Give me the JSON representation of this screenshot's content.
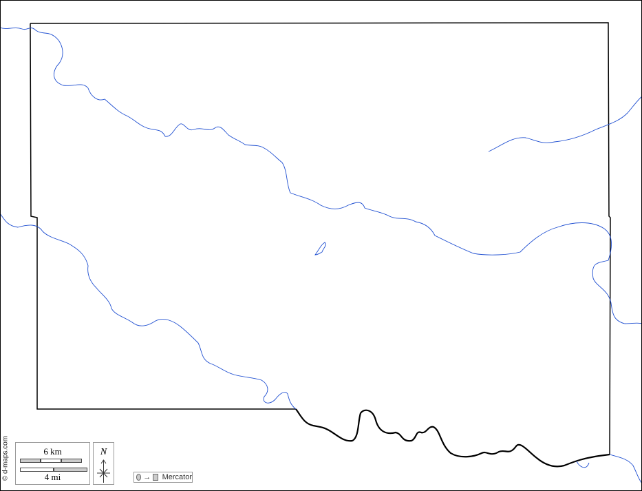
{
  "credit": "© d-maps.com",
  "scale": {
    "km_label": "6 km",
    "mi_label": "4 mi"
  },
  "compass": {
    "north_label": "N"
  },
  "projection": {
    "label": "Mercator",
    "arrow": "→"
  },
  "colors": {
    "river": "#1f4fd1",
    "border": "#000000"
  }
}
